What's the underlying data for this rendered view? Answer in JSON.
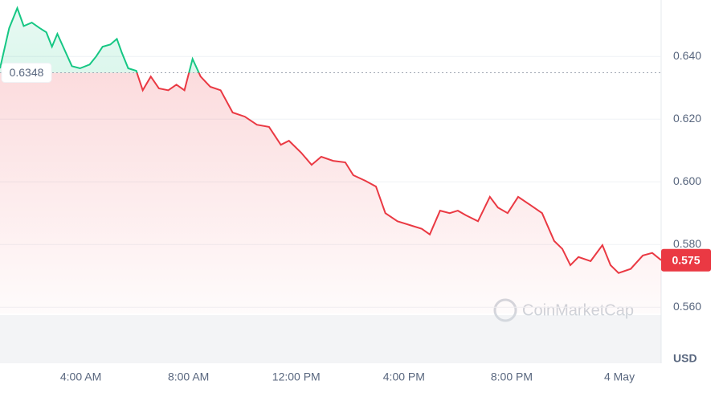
{
  "chart_data": {
    "type": "line",
    "x": [
      1.0,
      1.34,
      1.64,
      1.88,
      2.18,
      2.48,
      2.72,
      2.93,
      3.13,
      3.37,
      3.67,
      3.97,
      4.33,
      4.57,
      4.81,
      5.1,
      5.34,
      5.52,
      5.76,
      6.06,
      6.3,
      6.6,
      6.9,
      7.25,
      7.55,
      7.85,
      8.15,
      8.45,
      8.81,
      9.19,
      9.64,
      10.09,
      10.54,
      10.99,
      11.43,
      11.73,
      12.18,
      12.57,
      12.93,
      13.37,
      13.82,
      14.12,
      14.57,
      14.96,
      15.31,
      15.76,
      16.21,
      16.66,
      16.96,
      17.34,
      17.7,
      18.0,
      18.3,
      18.75,
      19.19,
      19.49,
      19.85,
      20.24,
      20.69,
      21.13,
      21.58,
      21.88,
      22.18,
      22.48,
      22.93,
      23.37,
      23.67,
      23.97,
      24.42,
      24.87,
      25.22,
      25.55
    ],
    "values": [
      0.6362,
      0.649,
      0.6554,
      0.6497,
      0.6508,
      0.649,
      0.6477,
      0.6431,
      0.6472,
      0.6426,
      0.6369,
      0.6362,
      0.6374,
      0.64,
      0.6431,
      0.6438,
      0.6456,
      0.6413,
      0.6362,
      0.6354,
      0.6292,
      0.6336,
      0.6298,
      0.6292,
      0.631,
      0.6292,
      0.6392,
      0.6336,
      0.6303,
      0.6292,
      0.6221,
      0.6208,
      0.6182,
      0.6175,
      0.6118,
      0.6131,
      0.6093,
      0.6054,
      0.608,
      0.6067,
      0.6062,
      0.6021,
      0.6003,
      0.5985,
      0.59,
      0.5874,
      0.5862,
      0.585,
      0.5832,
      0.5908,
      0.59,
      0.5908,
      0.5893,
      0.5874,
      0.5952,
      0.5918,
      0.59,
      0.5952,
      0.5926,
      0.59,
      0.5811,
      0.5786,
      0.5734,
      0.576,
      0.5747,
      0.5798,
      0.5734,
      0.5709,
      0.5722,
      0.5765,
      0.5773,
      0.575
    ],
    "baseline": 0.6348,
    "current": 0.575,
    "up_color": "#16c784",
    "down_color": "#ea3943",
    "xlim": [
      1.0,
      25.55
    ],
    "xticks": [
      {
        "value": 4,
        "label": "4:00 AM"
      },
      {
        "value": 8,
        "label": "8:00 AM"
      },
      {
        "value": 12,
        "label": "12:00 PM"
      },
      {
        "value": 16,
        "label": "4:00 PM"
      },
      {
        "value": 20,
        "label": "8:00 PM"
      },
      {
        "value": 24,
        "label": "4 May"
      }
    ],
    "ylim": [
      0.558,
      0.658
    ],
    "yticks": [
      {
        "value": 0.56,
        "label": "0.560"
      },
      {
        "value": 0.58,
        "label": "0.580"
      },
      {
        "value": 0.6,
        "label": "0.600"
      },
      {
        "value": 0.62,
        "label": "0.620"
      },
      {
        "value": 0.64,
        "label": "0.640"
      }
    ],
    "currency": "USD",
    "watermark": "CoinMarketCap",
    "grid": true
  }
}
